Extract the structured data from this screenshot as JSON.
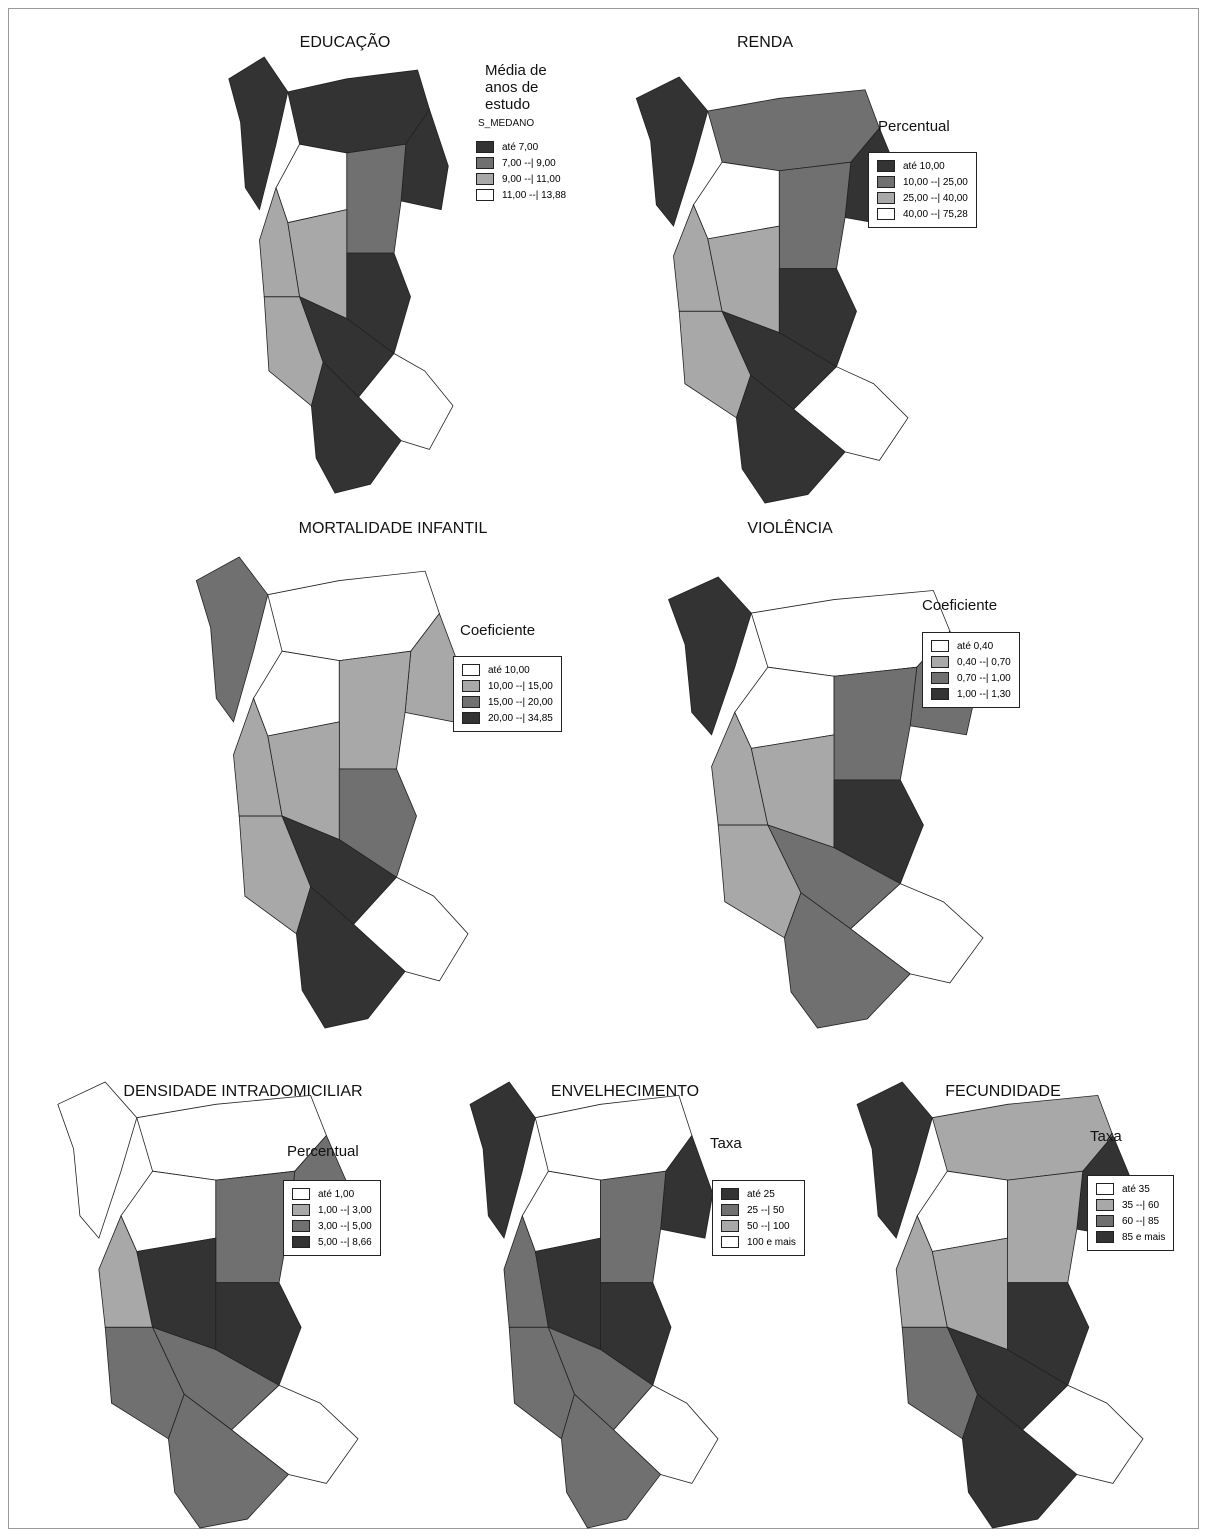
{
  "maps": [
    {
      "title": "EDUCAÇÃO",
      "legend_title": "Média de anos de estudo",
      "legend_subtitle": "S_MEDANO",
      "legend": [
        {
          "label": "até 7,00",
          "color": "#333333"
        },
        {
          "label": "7,00 --| 9,00",
          "color": "#707070"
        },
        {
          "label": "9,00 --| 11,00",
          "color": "#a8a8a8"
        },
        {
          "label": "11,00 --| 13,88",
          "color": "#ffffff"
        }
      ]
    },
    {
      "title": "RENDA",
      "legend_title": "Percentual",
      "legend": [
        {
          "label": "até 10,00",
          "color": "#333333"
        },
        {
          "label": "10,00 --| 25,00",
          "color": "#707070"
        },
        {
          "label": "25,00 --| 40,00",
          "color": "#a8a8a8"
        },
        {
          "label": "40,00 --| 75,28",
          "color": "#ffffff"
        }
      ]
    },
    {
      "title": "MORTALIDADE INFANTIL",
      "legend_title": "Coeficiente",
      "legend": [
        {
          "label": "até 10,00",
          "color": "#ffffff"
        },
        {
          "label": "10,00 --| 15,00",
          "color": "#a8a8a8"
        },
        {
          "label": "15,00 --| 20,00",
          "color": "#707070"
        },
        {
          "label": "20,00 --| 34,85",
          "color": "#333333"
        }
      ]
    },
    {
      "title": "VIOLÊNCIA",
      "legend_title": "Coeficiente",
      "legend": [
        {
          "label": "até 0,40",
          "color": "#ffffff"
        },
        {
          "label": "0,40 --| 0,70",
          "color": "#a8a8a8"
        },
        {
          "label": "0,70 --| 1,00",
          "color": "#707070"
        },
        {
          "label": "1,00 --| 1,30",
          "color": "#333333"
        }
      ]
    },
    {
      "title": "DENSIDADE INTRADOMICILIAR",
      "legend_title": "Percentual",
      "legend": [
        {
          "label": "até 1,00",
          "color": "#ffffff"
        },
        {
          "label": "1,00 --| 3,00",
          "color": "#a8a8a8"
        },
        {
          "label": "3,00 --| 5,00",
          "color": "#707070"
        },
        {
          "label": "5,00 --| 8,66",
          "color": "#333333"
        }
      ]
    },
    {
      "title": "ENVELHECIMENTO",
      "legend_title": "Taxa",
      "legend": [
        {
          "label": "até 25",
          "color": "#333333"
        },
        {
          "label": "25 --| 50",
          "color": "#707070"
        },
        {
          "label": "50 --| 100",
          "color": "#a8a8a8"
        },
        {
          "label": "100 e mais",
          "color": "#ffffff"
        }
      ]
    },
    {
      "title": "FECUNDIDADE",
      "legend_title": "Taxa",
      "legend": [
        {
          "label": "até 35",
          "color": "#ffffff"
        },
        {
          "label": "35 --| 60",
          "color": "#a8a8a8"
        },
        {
          "label": "60 --| 85",
          "color": "#707070"
        },
        {
          "label": "85 e mais",
          "color": "#333333"
        }
      ]
    }
  ]
}
